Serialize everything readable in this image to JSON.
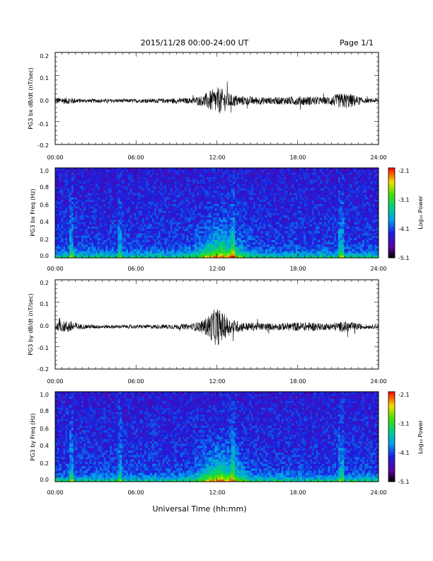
{
  "header": {
    "date_range": "2015/11/28  00:00-24:00 UT",
    "page": "Page 1/1"
  },
  "xlabel": "Universal Time (hh:mm)",
  "colorbar": {
    "ticks": [
      "-2.1",
      "-3.1",
      "-4.1",
      "-5.1"
    ],
    "label": "Log₁₀ Power",
    "range": [
      -5.1,
      -2.1
    ]
  },
  "chart_data": [
    {
      "type": "line",
      "ylabel": "PG3 bx dB/dt (nT/sec)",
      "xlim": [
        0,
        24
      ],
      "ylim": [
        -0.2,
        0.2
      ],
      "x_ticks": [
        "00:00",
        "06:00",
        "12:00",
        "18:00",
        "24:00"
      ],
      "y_ticks": [
        "0.2",
        "0.1",
        "0.0",
        "-0.1",
        "-0.2"
      ],
      "envelope": {
        "t_hours": [
          0,
          1,
          2,
          4,
          6,
          8,
          10,
          11,
          11.5,
          12,
          12.5,
          13,
          14,
          16,
          18,
          19,
          20,
          21,
          21.5,
          22,
          23,
          24
        ],
        "amplitude": [
          0.012,
          0.015,
          0.008,
          0.008,
          0.008,
          0.01,
          0.012,
          0.025,
          0.045,
          0.06,
          0.05,
          0.03,
          0.02,
          0.015,
          0.02,
          0.02,
          0.015,
          0.03,
          0.035,
          0.03,
          0.01,
          0.008
        ]
      }
    },
    {
      "type": "heatmap",
      "ylabel": "PG3 bx Freq (Hz)",
      "xlim": [
        0,
        24
      ],
      "ylim": [
        0,
        1.0
      ],
      "x_ticks": [
        "00:00",
        "06:00",
        "12:00",
        "18:00",
        "24:00"
      ],
      "y_ticks": [
        "1.0",
        "0.8",
        "0.6",
        "0.4",
        "0.2",
        "0.0"
      ],
      "zlim": [
        -5.1,
        -2.1
      ]
    },
    {
      "type": "line",
      "ylabel": "PG3 by dB/dt (nT/sec)",
      "xlim": [
        0,
        24
      ],
      "ylim": [
        -0.2,
        0.2
      ],
      "x_ticks": [
        "00:00",
        "06:00",
        "12:00",
        "18:00",
        "24:00"
      ],
      "y_ticks": [
        "0.2",
        "0.1",
        "0.0",
        "-0.1",
        "-0.2"
      ],
      "envelope": {
        "t_hours": [
          0,
          1,
          2,
          4,
          6,
          8,
          10,
          11,
          11.5,
          12,
          12.5,
          13,
          14,
          16,
          18,
          19,
          20,
          21,
          21.5,
          22,
          23,
          24
        ],
        "amplitude": [
          0.015,
          0.03,
          0.01,
          0.008,
          0.008,
          0.01,
          0.012,
          0.03,
          0.06,
          0.09,
          0.06,
          0.035,
          0.02,
          0.015,
          0.02,
          0.02,
          0.015,
          0.02,
          0.025,
          0.02,
          0.01,
          0.008
        ]
      }
    },
    {
      "type": "heatmap",
      "ylabel": "PG3 by Freq (Hz)",
      "xlim": [
        0,
        24
      ],
      "ylim": [
        0,
        1.0
      ],
      "x_ticks": [
        "00:00",
        "06:00",
        "12:00",
        "18:00",
        "24:00"
      ],
      "y_ticks": [
        "1.0",
        "0.8",
        "0.6",
        "0.4",
        "0.2",
        "0.0"
      ],
      "zlim": [
        -5.1,
        -2.1
      ]
    }
  ]
}
